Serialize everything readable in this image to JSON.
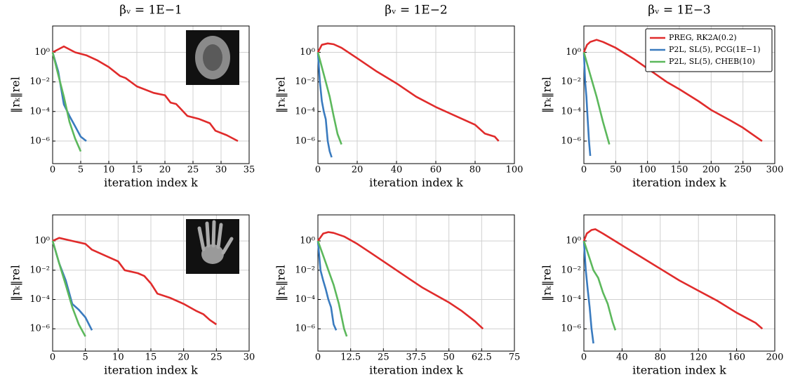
{
  "chart_data": [
    {
      "type": "line",
      "title": "βᵥ = 1E−1",
      "xlabel": "iteration index k",
      "ylabel": "‖rₖ‖rel",
      "log_y": true,
      "grid": true,
      "xlim": [
        0,
        35
      ],
      "xticks": [
        0,
        5,
        10,
        15,
        20,
        25,
        30,
        35
      ],
      "ylim": [
        3e-08,
        60
      ],
      "yticks": [
        {
          "value": 1,
          "label": "10⁰"
        },
        {
          "value": 0.01,
          "label": "10⁻²"
        },
        {
          "value": 0.0001,
          "label": "10⁻⁴"
        },
        {
          "value": 1e-06,
          "label": "10⁻⁶"
        }
      ],
      "series": [
        {
          "color": "#e02b2b",
          "x": [
            0,
            2,
            4,
            6,
            8,
            10,
            12,
            13,
            15,
            18,
            20,
            21,
            22,
            24,
            26,
            28,
            29,
            31,
            33
          ],
          "values": [
            1,
            2.5,
            1,
            0.63,
            0.28,
            0.1,
            0.025,
            0.018,
            0.005,
            0.0018,
            0.00126,
            0.0004,
            0.00032,
            5e-05,
            3.2e-05,
            1.6e-05,
            5e-06,
            2.5e-06,
            1e-06
          ]
        },
        {
          "color": "#3a7bbf",
          "x": [
            0,
            1,
            2,
            3,
            4,
            5,
            6
          ],
          "values": [
            1,
            0.05,
            0.0003,
            5e-05,
            1e-05,
            2e-06,
            1e-06
          ]
        },
        {
          "color": "#5cb85c",
          "x": [
            0,
            1,
            2,
            3,
            4,
            5
          ],
          "values": [
            1,
            0.03,
            0.001,
            2e-05,
            1.5e-06,
            2e-07
          ]
        }
      ]
    },
    {
      "type": "line",
      "title": "βᵥ = 1E−2",
      "xlabel": "iteration index k",
      "ylabel": "‖rₖ‖rel",
      "log_y": true,
      "grid": true,
      "xlim": [
        0,
        100
      ],
      "xticks": [
        0,
        20,
        40,
        60,
        80,
        100
      ],
      "ylim": [
        3e-08,
        60
      ],
      "yticks": [
        {
          "value": 1,
          "label": "10⁰"
        },
        {
          "value": 0.01,
          "label": "10⁻²"
        },
        {
          "value": 0.0001,
          "label": "10⁻⁴"
        },
        {
          "value": 1e-06,
          "label": "10⁻⁶"
        }
      ],
      "series": [
        {
          "color": "#e02b2b",
          "x": [
            0,
            2,
            5,
            8,
            12,
            20,
            30,
            40,
            50,
            60,
            70,
            80,
            85,
            90,
            92
          ],
          "values": [
            1,
            3.2,
            4,
            3.5,
            2,
            0.4,
            0.05,
            0.008,
            0.001,
            0.0002,
            5e-05,
            1.26e-05,
            3.2e-06,
            2e-06,
            1e-06
          ]
        },
        {
          "color": "#3a7bbf",
          "x": [
            0,
            1,
            2,
            3,
            4,
            5,
            6,
            7
          ],
          "values": [
            1,
            0.01,
            0.0005,
            0.0001,
            3e-05,
            1e-06,
            2e-07,
            8e-08
          ]
        },
        {
          "color": "#5cb85c",
          "x": [
            0,
            2,
            4,
            6,
            8,
            10,
            12
          ],
          "values": [
            1,
            0.1,
            0.01,
            0.001,
            5e-05,
            3e-06,
            6e-07
          ]
        }
      ]
    },
    {
      "type": "line",
      "title": "βᵥ = 1E−3",
      "xlabel": "iteration index k",
      "ylabel": "‖rₖ‖rel",
      "log_y": true,
      "grid": true,
      "legend": "upper right",
      "xlim": [
        0,
        300
      ],
      "xticks": [
        0,
        50,
        100,
        150,
        200,
        250,
        300
      ],
      "ylim": [
        3e-08,
        60
      ],
      "yticks": [
        {
          "value": 1,
          "label": "10⁰"
        },
        {
          "value": 0.01,
          "label": "10⁻²"
        },
        {
          "value": 0.0001,
          "label": "10⁻⁴"
        },
        {
          "value": 1e-06,
          "label": "10⁻⁶"
        }
      ],
      "series": [
        {
          "name": "PREG, RK2A(0.2)",
          "color": "#e02b2b",
          "x": [
            0,
            5,
            10,
            20,
            30,
            50,
            80,
            100,
            130,
            150,
            180,
            200,
            230,
            250,
            280
          ],
          "values": [
            1,
            3.2,
            5,
            7,
            5,
            2,
            0.32,
            0.08,
            0.01,
            0.0032,
            0.0005,
            0.000126,
            2.5e-05,
            8e-06,
            1e-06
          ]
        },
        {
          "name": "P2L, SL(5), PCG(1E−1)",
          "color": "#3a7bbf",
          "x": [
            0,
            2,
            4,
            6,
            8,
            10
          ],
          "values": [
            1,
            0.01,
            0.001,
            3e-05,
            1e-06,
            1e-07
          ]
        },
        {
          "name": "P2L, SL(5), CHEB(10)",
          "color": "#5cb85c",
          "x": [
            0,
            10,
            20,
            30,
            40
          ],
          "values": [
            1,
            0.03,
            0.001,
            2e-05,
            6e-07
          ]
        }
      ]
    },
    {
      "type": "line",
      "xlabel": "iteration index k",
      "ylabel": "‖rₖ‖rel",
      "log_y": true,
      "grid": true,
      "xlim": [
        0,
        30
      ],
      "xticks": [
        0,
        5,
        10,
        15,
        20,
        25,
        30
      ],
      "ylim": [
        3e-08,
        60
      ],
      "yticks": [
        {
          "value": 1,
          "label": "10⁰"
        },
        {
          "value": 0.01,
          "label": "10⁻²"
        },
        {
          "value": 0.0001,
          "label": "10⁻⁴"
        },
        {
          "value": 1e-06,
          "label": "10⁻⁶"
        }
      ],
      "series": [
        {
          "color": "#e02b2b",
          "x": [
            0,
            1,
            3,
            5,
            6,
            8,
            10,
            11,
            13,
            14,
            15,
            16,
            18,
            20,
            22,
            23,
            24,
            25
          ],
          "values": [
            1,
            1.6,
            1,
            0.63,
            0.25,
            0.1,
            0.04,
            0.01,
            0.0063,
            0.004,
            0.00126,
            0.00025,
            0.000126,
            5e-05,
            1.6e-05,
            1e-05,
            4e-06,
            2e-06
          ]
        },
        {
          "color": "#3a7bbf",
          "x": [
            0,
            1,
            2,
            3,
            4,
            5,
            6
          ],
          "values": [
            1,
            0.03,
            0.002,
            5e-05,
            2e-05,
            6e-06,
            8e-07
          ]
        },
        {
          "color": "#5cb85c",
          "x": [
            0,
            1,
            2,
            3,
            4,
            5
          ],
          "values": [
            1,
            0.03,
            0.001,
            3e-05,
            2e-06,
            3e-07
          ]
        }
      ]
    },
    {
      "type": "line",
      "xlabel": "iteration index k",
      "ylabel": "‖rₖ‖rel",
      "log_y": true,
      "grid": true,
      "xlim": [
        0,
        75
      ],
      "xticks": [
        0,
        12.5,
        25,
        37.5,
        50,
        62.5,
        75
      ],
      "ylim": [
        3e-08,
        60
      ],
      "yticks": [
        {
          "value": 1,
          "label": "10⁰"
        },
        {
          "value": 0.01,
          "label": "10⁻²"
        },
        {
          "value": 0.0001,
          "label": "10⁻⁴"
        },
        {
          "value": 1e-06,
          "label": "10⁻⁶"
        }
      ],
      "series": [
        {
          "color": "#e02b2b",
          "x": [
            0,
            2,
            4,
            6,
            10,
            15,
            20,
            25,
            30,
            35,
            40,
            45,
            50,
            55,
            60,
            63
          ],
          "values": [
            1,
            3.2,
            4,
            3.5,
            2,
            0.63,
            0.16,
            0.04,
            0.01,
            0.0025,
            0.00063,
            0.0002,
            6.3e-05,
            1.6e-05,
            3.2e-06,
            1e-06
          ]
        },
        {
          "color": "#3a7bbf",
          "x": [
            0,
            1,
            2,
            3,
            4,
            5,
            6,
            7
          ],
          "values": [
            1,
            0.01,
            0.002,
            0.0005,
            0.0001,
            3e-05,
            2e-06,
            8e-07
          ]
        },
        {
          "color": "#5cb85c",
          "x": [
            0,
            2,
            4,
            6,
            8,
            10,
            11
          ],
          "values": [
            1,
            0.1,
            0.01,
            0.001,
            5e-05,
            1e-06,
            3e-07
          ]
        }
      ]
    },
    {
      "type": "line",
      "xlabel": "iteration index k",
      "ylabel": "‖rₖ‖rel",
      "log_y": true,
      "grid": true,
      "xlim": [
        0,
        200
      ],
      "xticks": [
        0,
        40,
        80,
        120,
        160,
        200
      ],
      "ylim": [
        3e-08,
        60
      ],
      "yticks": [
        {
          "value": 1,
          "label": "10⁰"
        },
        {
          "value": 0.01,
          "label": "10⁻²"
        },
        {
          "value": 0.0001,
          "label": "10⁻⁴"
        },
        {
          "value": 1e-06,
          "label": "10⁻⁶"
        }
      ],
      "series": [
        {
          "color": "#e02b2b",
          "x": [
            0,
            3,
            8,
            12,
            20,
            40,
            60,
            80,
            100,
            120,
            140,
            160,
            180,
            187
          ],
          "values": [
            1,
            3.2,
            5.6,
            6.3,
            3.2,
            0.5,
            0.08,
            0.0126,
            0.002,
            0.0004,
            8e-05,
            1.26e-05,
            2.5e-06,
            1e-06
          ]
        },
        {
          "color": "#3a7bbf",
          "x": [
            0,
            2,
            4,
            6,
            8,
            10
          ],
          "values": [
            1,
            0.01,
            0.0005,
            3e-05,
            1e-06,
            1e-07
          ]
        },
        {
          "color": "#5cb85c",
          "x": [
            0,
            5,
            10,
            15,
            20,
            25,
            30,
            33
          ],
          "values": [
            1,
            0.1,
            0.01,
            0.003,
            0.0003,
            5e-05,
            3e-06,
            8e-07
          ]
        }
      ]
    }
  ]
}
